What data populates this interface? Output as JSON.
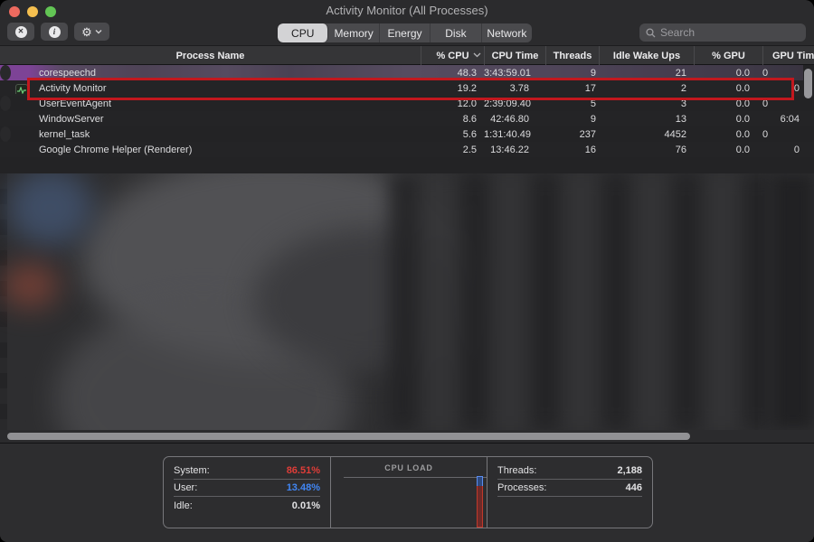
{
  "window": {
    "title": "Activity Monitor (All Processes)"
  },
  "toolbar": {
    "buttons": {
      "quit": "quit-process",
      "info": "inspect-process",
      "settings": "view-options"
    },
    "tabs": [
      "CPU",
      "Memory",
      "Energy",
      "Disk",
      "Network"
    ],
    "selected_tab": "CPU",
    "search_placeholder": "Search"
  },
  "table": {
    "columns": [
      "Process Name",
      "% CPU",
      "CPU Time",
      "Threads",
      "Idle Wake Ups",
      "% GPU",
      "GPU Tim"
    ],
    "sort_column": "% CPU",
    "sort_direction": "descending",
    "rows": [
      {
        "name": "corespeechd",
        "cpu": "48.3",
        "cpu_time": "3:43:59.01",
        "threads": "9",
        "idle_wake_ups": "21",
        "gpu": "0.0",
        "gpu_time": "0",
        "highlighted": true,
        "has_icon": false
      },
      {
        "name": "Activity Monitor",
        "cpu": "19.2",
        "cpu_time": "3.78",
        "threads": "17",
        "idle_wake_ups": "2",
        "gpu": "0.0",
        "gpu_time": "0",
        "highlighted": false,
        "has_icon": true
      },
      {
        "name": "UserEventAgent",
        "cpu": "12.0",
        "cpu_time": "2:39:09.40",
        "threads": "5",
        "idle_wake_ups": "3",
        "gpu": "0.0",
        "gpu_time": "0",
        "highlighted": false,
        "has_icon": false
      },
      {
        "name": "WindowServer",
        "cpu": "8.6",
        "cpu_time": "42:46.80",
        "threads": "9",
        "idle_wake_ups": "13",
        "gpu": "0.0",
        "gpu_time": "6:04",
        "highlighted": false,
        "has_icon": false
      },
      {
        "name": "kernel_task",
        "cpu": "5.6",
        "cpu_time": "1:31:40.49",
        "threads": "237",
        "idle_wake_ups": "4452",
        "gpu": "0.0",
        "gpu_time": "0",
        "highlighted": false,
        "has_icon": false
      },
      {
        "name": "Google Chrome Helper (Renderer)",
        "cpu": "2.5",
        "cpu_time": "13:46.22",
        "threads": "16",
        "idle_wake_ups": "76",
        "gpu": "0.0",
        "gpu_time": "0",
        "highlighted": false,
        "has_icon": false
      }
    ]
  },
  "footer": {
    "cpu_stats": [
      {
        "label": "System:",
        "value": "86.51%",
        "color": "#e03d38"
      },
      {
        "label": "User:",
        "value": "13.48%",
        "color": "#4186f4"
      },
      {
        "label": "Idle:",
        "value": "0.01%",
        "color": "#e2e2e4"
      }
    ],
    "graph_title": "CPU LOAD",
    "counts": [
      {
        "label": "Threads:",
        "value": "2,188"
      },
      {
        "label": "Processes:",
        "value": "446"
      }
    ]
  },
  "colors": {
    "highlight_box": "#c2181e",
    "system_red": "#e03d38",
    "user_blue": "#4186f4",
    "selected_row_purple": "#7d4396",
    "traffic_close": "#ed6a5f",
    "traffic_minimize": "#f5bf4f",
    "traffic_zoom": "#62c554"
  }
}
